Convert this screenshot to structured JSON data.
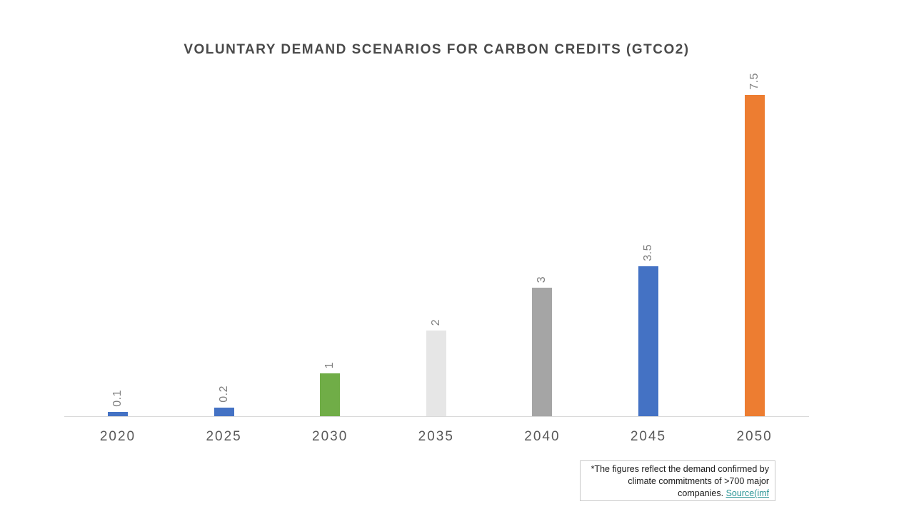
{
  "chart_data": {
    "type": "bar",
    "title": "VOLUNTARY DEMAND SCENARIOS FOR CARBON CREDITS (GTCO2)",
    "categories": [
      "2020",
      "2025",
      "2030",
      "2035",
      "2040",
      "2045",
      "2050"
    ],
    "values": [
      0.1,
      0.2,
      1,
      2,
      3,
      3.5,
      7.5
    ],
    "value_labels": [
      "0.1",
      "0.2",
      "1",
      "2",
      "3",
      "3.5",
      "7.5"
    ],
    "bar_colors": [
      "#4472C4",
      "#4472C4",
      "#70AD47",
      "#E6E6E6",
      "#A5A5A5",
      "#4472C4",
      "#ED7D31"
    ],
    "data_label_rotation": "vertical",
    "xlabel": "",
    "ylabel": "",
    "ylim": [
      0,
      7.5
    ],
    "grid": false,
    "legend": false,
    "axis_line_color": "#D9D9D9",
    "data_label_color": "#7F7F7F",
    "category_label_color": "#595959",
    "title_color": "#4A4A4A"
  },
  "footnote": {
    "text": "*The figures reflect the demand confirmed by climate commitments of >700 major companies.",
    "link_label": "Source(imf",
    "link_color": "#2A9596"
  }
}
